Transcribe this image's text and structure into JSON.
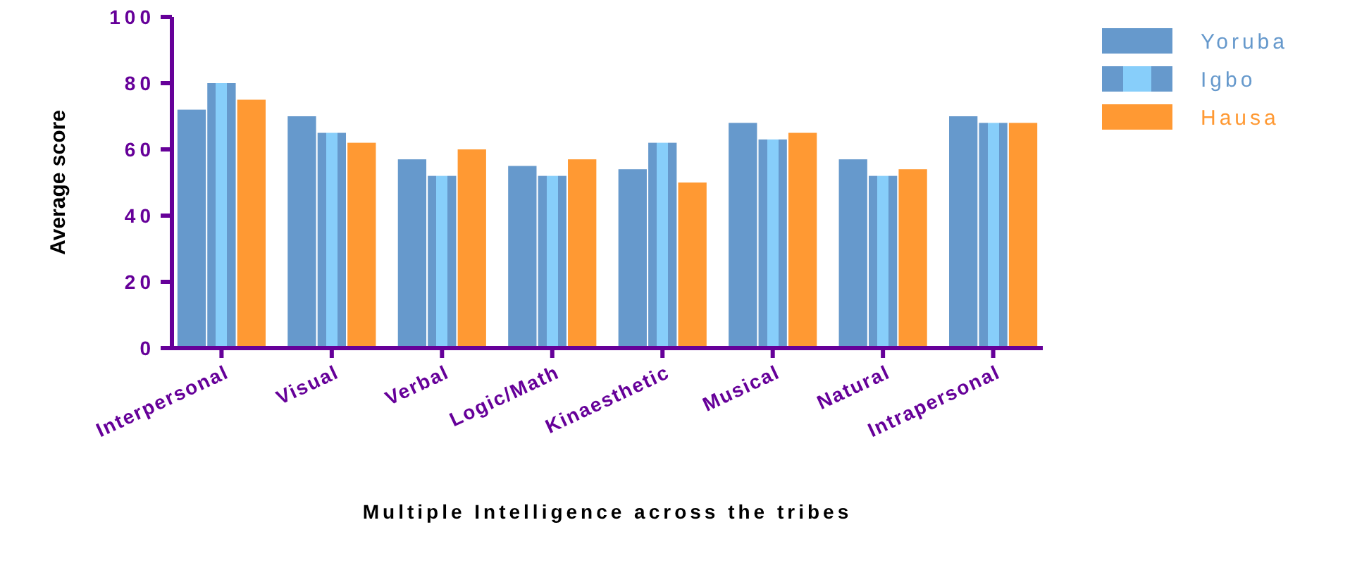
{
  "chart_data": {
    "type": "bar",
    "xlabel": "Multiple Intelligence across the tribes",
    "ylabel": "Average score",
    "categories": [
      "Interpersonal",
      "Visual",
      "Verbal",
      "Logic/Math",
      "Kinaesthetic",
      "Musical",
      "Natural",
      "Intrapersonal"
    ],
    "series": [
      {
        "name": "Yoruba",
        "color": "#6699cc",
        "values": [
          72,
          70,
          57,
          55,
          54,
          68,
          57,
          70
        ]
      },
      {
        "name": "Igbo",
        "color": "#87cefa",
        "values": [
          80,
          65,
          52,
          52,
          62,
          63,
          52,
          68
        ]
      },
      {
        "name": "Hausa",
        "color": "#ff9933",
        "values": [
          75,
          62,
          60,
          57,
          50,
          65,
          54,
          68
        ]
      }
    ],
    "ylim": [
      0,
      100
    ],
    "yticks": [
      0,
      20,
      40,
      60,
      80,
      100
    ],
    "grid": false,
    "legend": "top right"
  }
}
